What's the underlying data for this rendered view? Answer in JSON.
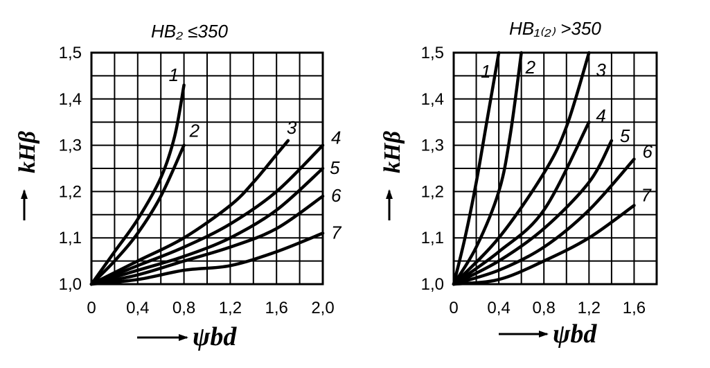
{
  "chart_data": [
    {
      "type": "line",
      "title": "HB₂ ≤350",
      "xlabel": "ψbd",
      "ylabel": "kHβ",
      "xlim": [
        0,
        2.0
      ],
      "ylim": [
        1.0,
        1.5
      ],
      "x_ticks": [
        "0",
        "0,4",
        "0,8",
        "1,2",
        "1,6",
        "2,0"
      ],
      "y_ticks": [
        "1,0",
        "1,1",
        "1,2",
        "1,3",
        "1,4",
        "1,5"
      ],
      "grid": true,
      "series": [
        {
          "name": "1",
          "points": [
            [
              0,
              1.0
            ],
            [
              0.2,
              1.07
            ],
            [
              0.4,
              1.14
            ],
            [
              0.6,
              1.23
            ],
            [
              0.72,
              1.32
            ],
            [
              0.8,
              1.43
            ]
          ]
        },
        {
          "name": "2",
          "points": [
            [
              0,
              1.0
            ],
            [
              0.2,
              1.05
            ],
            [
              0.4,
              1.11
            ],
            [
              0.6,
              1.19
            ],
            [
              0.8,
              1.3
            ]
          ]
        },
        {
          "name": "3",
          "points": [
            [
              0,
              1.0
            ],
            [
              0.4,
              1.05
            ],
            [
              0.8,
              1.1
            ],
            [
              1.2,
              1.17
            ],
            [
              1.4,
              1.22
            ],
            [
              1.6,
              1.28
            ],
            [
              1.7,
              1.31
            ]
          ]
        },
        {
          "name": "4",
          "points": [
            [
              0,
              1.0
            ],
            [
              0.4,
              1.04
            ],
            [
              0.8,
              1.08
            ],
            [
              1.2,
              1.13
            ],
            [
              1.6,
              1.2
            ],
            [
              2.0,
              1.3
            ]
          ]
        },
        {
          "name": "5",
          "points": [
            [
              0,
              1.0
            ],
            [
              0.4,
              1.03
            ],
            [
              0.8,
              1.06
            ],
            [
              1.2,
              1.1
            ],
            [
              1.6,
              1.16
            ],
            [
              2.0,
              1.25
            ]
          ]
        },
        {
          "name": "6",
          "points": [
            [
              0,
              1.0
            ],
            [
              0.4,
              1.02
            ],
            [
              0.8,
              1.05
            ],
            [
              1.2,
              1.08
            ],
            [
              1.6,
              1.12
            ],
            [
              2.0,
              1.19
            ]
          ]
        },
        {
          "name": "7",
          "points": [
            [
              0,
              1.0
            ],
            [
              0.4,
              1.01
            ],
            [
              0.8,
              1.03
            ],
            [
              1.2,
              1.04
            ],
            [
              1.6,
              1.07
            ],
            [
              2.0,
              1.11
            ]
          ]
        }
      ]
    },
    {
      "type": "line",
      "title": "HB₁₍₂₎ >350",
      "xlabel": "ψbd",
      "ylabel": "kHβ",
      "xlim": [
        0,
        1.8
      ],
      "ylim": [
        1.0,
        1.5
      ],
      "x_ticks": [
        "0",
        "0,4",
        "0,8",
        "1,2",
        "1,6"
      ],
      "y_ticks": [
        "1,0",
        "1,1",
        "1,2",
        "1,3",
        "1,4",
        "1,5"
      ],
      "grid": true,
      "series": [
        {
          "name": "1",
          "points": [
            [
              0,
              1.0
            ],
            [
              0.1,
              1.1
            ],
            [
              0.2,
              1.22
            ],
            [
              0.3,
              1.36
            ],
            [
              0.4,
              1.5
            ]
          ]
        },
        {
          "name": "2",
          "points": [
            [
              0,
              1.0
            ],
            [
              0.2,
              1.08
            ],
            [
              0.4,
              1.2
            ],
            [
              0.5,
              1.32
            ],
            [
              0.6,
              1.5
            ]
          ]
        },
        {
          "name": "3",
          "points": [
            [
              0,
              1.0
            ],
            [
              0.4,
              1.1
            ],
            [
              0.8,
              1.24
            ],
            [
              1.0,
              1.34
            ],
            [
              1.2,
              1.5
            ]
          ]
        },
        {
          "name": "4",
          "points": [
            [
              0,
              1.0
            ],
            [
              0.4,
              1.07
            ],
            [
              0.8,
              1.16
            ],
            [
              1.2,
              1.35
            ]
          ]
        },
        {
          "name": "5",
          "points": [
            [
              0,
              1.0
            ],
            [
              0.4,
              1.05
            ],
            [
              0.8,
              1.12
            ],
            [
              1.2,
              1.22
            ],
            [
              1.4,
              1.31
            ]
          ]
        },
        {
          "name": "6",
          "points": [
            [
              0,
              1.0
            ],
            [
              0.4,
              1.03
            ],
            [
              0.8,
              1.08
            ],
            [
              1.2,
              1.16
            ],
            [
              1.6,
              1.27
            ]
          ]
        },
        {
          "name": "7",
          "points": [
            [
              0,
              1.0
            ],
            [
              0.4,
              1.01
            ],
            [
              0.8,
              1.05
            ],
            [
              1.2,
              1.1
            ],
            [
              1.6,
              1.17
            ]
          ]
        }
      ]
    }
  ]
}
